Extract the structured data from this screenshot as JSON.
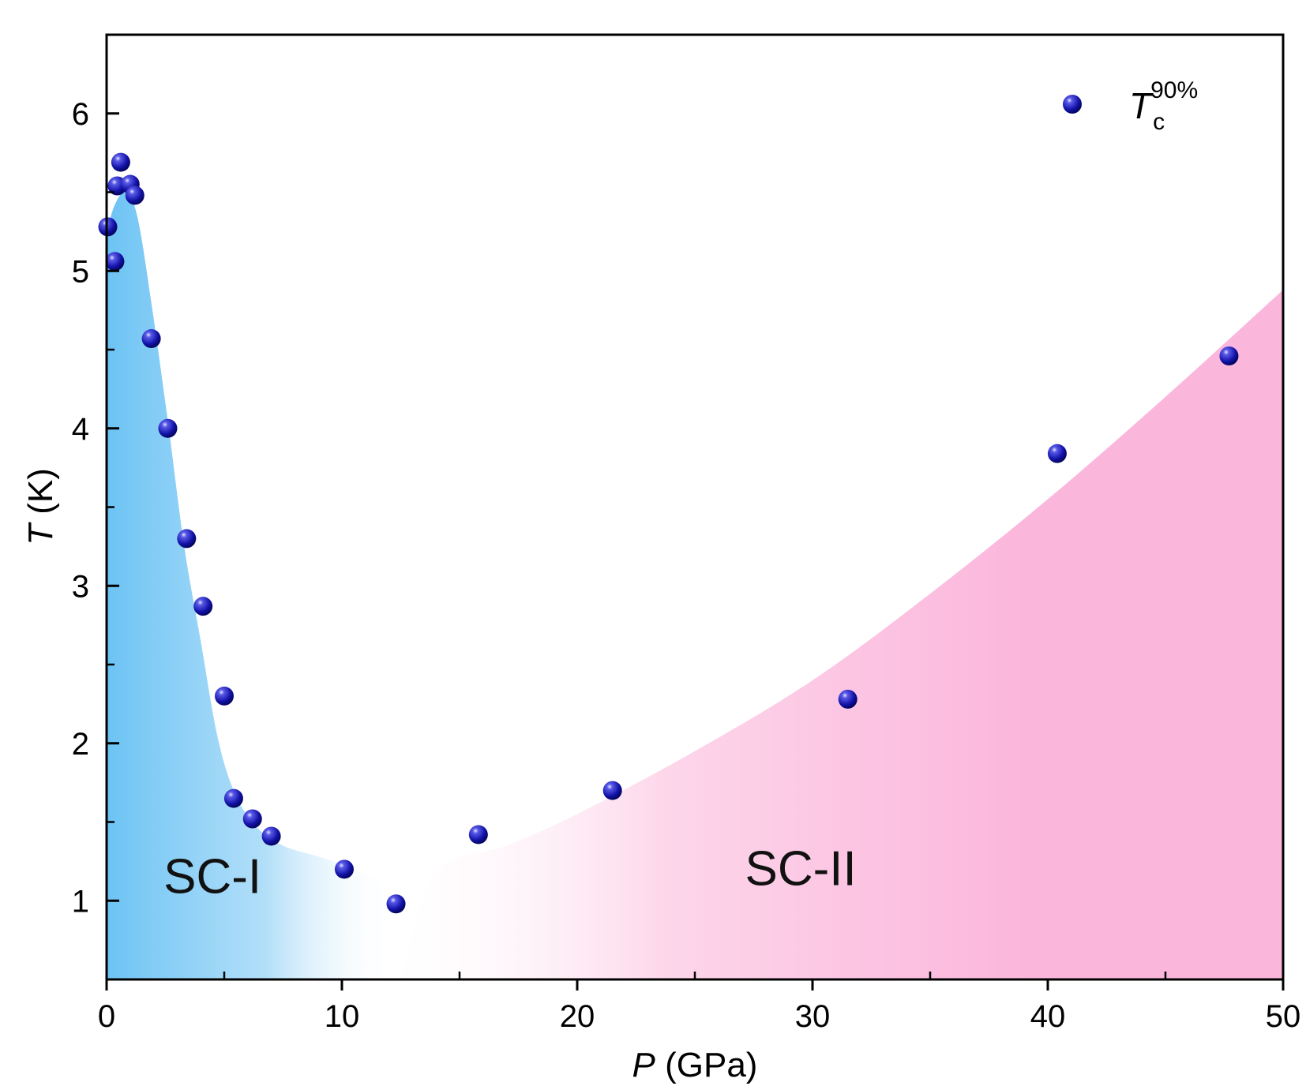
{
  "chart_data": {
    "type": "scatter",
    "x_axis": {
      "label_var": "P",
      "label_unit": " (GPa)",
      "range": [
        0,
        50
      ],
      "ticks": [
        0,
        10,
        20,
        30,
        40,
        50
      ],
      "minor_ticks": [
        5,
        15,
        25,
        35,
        45
      ]
    },
    "y_axis": {
      "label_var": "T",
      "label_unit": " (K)",
      "range": [
        0.5,
        6.5
      ],
      "ticks": [
        1,
        2,
        3,
        4,
        5,
        6
      ],
      "minor_ticks": [
        1.5,
        2.5,
        3.5,
        4.5,
        5.5
      ]
    },
    "legend": {
      "position": "top-right",
      "symbol_main": "T",
      "symbol_sub": "c",
      "symbol_sup": "90%"
    },
    "series": [
      {
        "name": "Tc90%",
        "color": "#1a1aaa",
        "points": [
          {
            "x": 0.05,
            "y": 5.28
          },
          {
            "x": 0.35,
            "y": 5.06
          },
          {
            "x": 0.45,
            "y": 5.54
          },
          {
            "x": 0.6,
            "y": 5.69
          },
          {
            "x": 1.0,
            "y": 5.55
          },
          {
            "x": 1.2,
            "y": 5.48
          },
          {
            "x": 1.9,
            "y": 4.57
          },
          {
            "x": 2.6,
            "y": 4.0
          },
          {
            "x": 3.4,
            "y": 3.3
          },
          {
            "x": 4.1,
            "y": 2.87
          },
          {
            "x": 5.0,
            "y": 2.3
          },
          {
            "x": 5.4,
            "y": 1.65
          },
          {
            "x": 6.2,
            "y": 1.52
          },
          {
            "x": 7.0,
            "y": 1.41
          },
          {
            "x": 10.1,
            "y": 1.2
          },
          {
            "x": 12.3,
            "y": 0.98
          },
          {
            "x": 15.8,
            "y": 1.42
          },
          {
            "x": 21.5,
            "y": 1.7
          },
          {
            "x": 31.5,
            "y": 2.28
          },
          {
            "x": 40.4,
            "y": 3.84
          },
          {
            "x": 47.7,
            "y": 4.46
          }
        ]
      }
    ],
    "regions": [
      {
        "label": "SC-I",
        "color": "#6cc3f4",
        "label_at": {
          "x": 4.5,
          "y": 1.05
        },
        "boundary": [
          {
            "x": 0,
            "y": 5.25
          },
          {
            "x": 0.35,
            "y": 5.42
          },
          {
            "x": 0.8,
            "y": 5.5
          },
          {
            "x": 1.3,
            "y": 5.35
          },
          {
            "x": 1.9,
            "y": 4.8
          },
          {
            "x": 2.6,
            "y": 4.05
          },
          {
            "x": 3.3,
            "y": 3.25
          },
          {
            "x": 4.0,
            "y": 2.65
          },
          {
            "x": 4.7,
            "y": 2.05
          },
          {
            "x": 5.4,
            "y": 1.7
          },
          {
            "x": 6.3,
            "y": 1.48
          },
          {
            "x": 7.5,
            "y": 1.35
          },
          {
            "x": 9.0,
            "y": 1.28
          },
          {
            "x": 10.5,
            "y": 1.2
          },
          {
            "x": 12.0,
            "y": 1.05
          },
          {
            "x": 13.0,
            "y": 0.5
          }
        ]
      },
      {
        "label": "SC-II",
        "color": "#fbb6dc",
        "label_at": {
          "x": 29.5,
          "y": 1.1
        },
        "boundary": [
          {
            "x": 12.5,
            "y": 0.5
          },
          {
            "x": 14.0,
            "y": 1.18
          },
          {
            "x": 17.0,
            "y": 1.35
          },
          {
            "x": 20.0,
            "y": 1.55
          },
          {
            "x": 25.0,
            "y": 1.95
          },
          {
            "x": 30.0,
            "y": 2.4
          },
          {
            "x": 35.0,
            "y": 2.95
          },
          {
            "x": 40.0,
            "y": 3.55
          },
          {
            "x": 45.0,
            "y": 4.2
          },
          {
            "x": 50.0,
            "y": 4.88
          }
        ]
      }
    ]
  }
}
